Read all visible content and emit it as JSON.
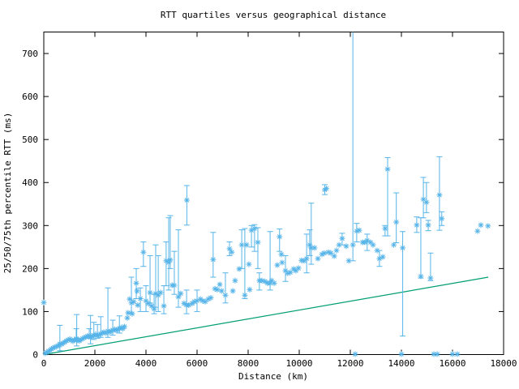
{
  "chart_data": {
    "type": "scatter",
    "subtype": "points-with-yerrorbars",
    "title": "RTT quartiles versus geographical distance",
    "xlabel": "Distance (km)",
    "ylabel": "25/50/75th percentile RTT (ms)",
    "xlim": [
      0,
      18000
    ],
    "ylim": [
      0,
      750
    ],
    "xticks": [
      0,
      2000,
      4000,
      6000,
      8000,
      10000,
      12000,
      14000,
      16000,
      18000
    ],
    "yticks": [
      0,
      100,
      200,
      300,
      400,
      500,
      600,
      700
    ],
    "grid": false,
    "legend": "none",
    "marker": "asterisk",
    "colors": {
      "points": "#56b4e9",
      "refline": "#009e73",
      "axis": "#000000",
      "background": "#ffffff"
    },
    "refline": {
      "meaning": "distance-proportional lower bound",
      "x": [
        0,
        17400
      ],
      "y": [
        0,
        180
      ]
    },
    "points_format": "[distance_km, median_ms, q1_ms?, q3_ms?]",
    "points": [
      [
        0,
        121
      ],
      [
        60,
        3
      ],
      [
        120,
        5
      ],
      [
        190,
        8
      ],
      [
        250,
        10
      ],
      [
        300,
        13
      ],
      [
        360,
        15
      ],
      [
        420,
        17
      ],
      [
        480,
        18
      ],
      [
        540,
        20
      ],
      [
        600,
        22
      ],
      [
        630,
        25,
        9,
        68
      ],
      [
        700,
        24
      ],
      [
        760,
        27
      ],
      [
        820,
        29
      ],
      [
        890,
        32
      ],
      [
        950,
        34
      ],
      [
        1020,
        36
      ],
      [
        1080,
        33
      ],
      [
        1140,
        31
      ],
      [
        1200,
        34
      ],
      [
        1270,
        37,
        30,
        60
      ],
      [
        1290,
        35,
        20,
        93
      ],
      [
        1340,
        33
      ],
      [
        1400,
        32
      ],
      [
        1460,
        35
      ],
      [
        1520,
        37
      ],
      [
        1580,
        39
      ],
      [
        1650,
        41
      ],
      [
        1710,
        43
      ],
      [
        1780,
        44,
        38,
        60
      ],
      [
        1830,
        40,
        25,
        91
      ],
      [
        1900,
        42
      ],
      [
        1960,
        45,
        35,
        75
      ],
      [
        2030,
        47
      ],
      [
        2100,
        44,
        38,
        70
      ],
      [
        2160,
        46
      ],
      [
        2230,
        48,
        40,
        88
      ],
      [
        2290,
        50
      ],
      [
        2350,
        52
      ],
      [
        2420,
        50
      ],
      [
        2510,
        55,
        40,
        155
      ],
      [
        2570,
        52
      ],
      [
        2640,
        54
      ],
      [
        2700,
        57,
        45,
        80
      ],
      [
        2770,
        59
      ],
      [
        2830,
        56
      ],
      [
        2900,
        58
      ],
      [
        2960,
        61,
        50,
        90
      ],
      [
        3030,
        63
      ],
      [
        3090,
        60
      ],
      [
        3160,
        65
      ],
      [
        3270,
        85
      ],
      [
        3300,
        97
      ],
      [
        3360,
        129
      ],
      [
        3430,
        120,
        95,
        180
      ],
      [
        3460,
        95
      ],
      [
        3520,
        123
      ],
      [
        3620,
        166,
        130,
        200
      ],
      [
        3650,
        148
      ],
      [
        3680,
        115
      ],
      [
        3780,
        130,
        100,
        155
      ],
      [
        3900,
        238,
        205,
        262
      ],
      [
        4000,
        125,
        100,
        160
      ],
      [
        4090,
        119
      ],
      [
        4160,
        144,
        120,
        230
      ],
      [
        4220,
        113
      ],
      [
        4320,
        106,
        95,
        140
      ],
      [
        4380,
        142,
        110,
        255
      ],
      [
        4480,
        138,
        100,
        230
      ],
      [
        4570,
        144
      ],
      [
        4700,
        113,
        95,
        160
      ],
      [
        4790,
        218,
        160,
        262
      ],
      [
        4890,
        214,
        150,
        318
      ],
      [
        4950,
        220,
        200,
        323
      ],
      [
        5020,
        161
      ],
      [
        5110,
        161,
        140,
        240
      ],
      [
        5270,
        134,
        110,
        290
      ],
      [
        5360,
        142
      ],
      [
        5490,
        119
      ],
      [
        5590,
        115,
        95,
        150
      ],
      [
        5600,
        359,
        301,
        393
      ],
      [
        5680,
        115
      ],
      [
        5810,
        119
      ],
      [
        5900,
        123
      ],
      [
        6000,
        125,
        100,
        150
      ],
      [
        6130,
        129
      ],
      [
        6220,
        125
      ],
      [
        6320,
        123
      ],
      [
        6440,
        129
      ],
      [
        6540,
        132
      ],
      [
        6630,
        221,
        180,
        284
      ],
      [
        6700,
        153
      ],
      [
        6790,
        151
      ],
      [
        6890,
        163
      ],
      [
        6960,
        148
      ],
      [
        7110,
        138,
        120,
        190
      ],
      [
        7270,
        246,
        230,
        262
      ],
      [
        7360,
        238
      ],
      [
        7400,
        148
      ],
      [
        7490,
        172
      ],
      [
        7650,
        199
      ],
      [
        7750,
        255,
        200,
        290
      ],
      [
        7870,
        138,
        130,
        293
      ],
      [
        7940,
        255
      ],
      [
        8030,
        210
      ],
      [
        8060,
        151
      ],
      [
        8130,
        289,
        250,
        300
      ],
      [
        8250,
        293,
        240,
        302
      ],
      [
        8380,
        261,
        200,
        295
      ],
      [
        8440,
        172,
        150,
        190
      ],
      [
        8540,
        172
      ],
      [
        8660,
        170
      ],
      [
        8760,
        166
      ],
      [
        8860,
        166,
        150,
        286
      ],
      [
        8920,
        172
      ],
      [
        9020,
        166
      ],
      [
        9140,
        208
      ],
      [
        9230,
        274,
        240,
        292
      ],
      [
        9300,
        233
      ],
      [
        9330,
        214
      ],
      [
        9460,
        195,
        170,
        230
      ],
      [
        9550,
        189
      ],
      [
        9650,
        191
      ],
      [
        9780,
        199
      ],
      [
        9870,
        195
      ],
      [
        9970,
        201
      ],
      [
        10090,
        219
      ],
      [
        10190,
        218
      ],
      [
        10290,
        223,
        190,
        280
      ],
      [
        10410,
        255,
        230,
        290
      ],
      [
        10470,
        248,
        210,
        352
      ],
      [
        10600,
        248
      ],
      [
        10730,
        223
      ],
      [
        10890,
        233
      ],
      [
        10980,
        236
      ],
      [
        11000,
        383,
        372,
        395
      ],
      [
        11060,
        386
      ],
      [
        11140,
        238
      ],
      [
        11240,
        236
      ],
      [
        11370,
        229
      ],
      [
        11460,
        242
      ],
      [
        11560,
        255
      ],
      [
        11680,
        270,
        255,
        282
      ],
      [
        11840,
        252
      ],
      [
        11940,
        218
      ],
      [
        12100,
        255,
        218,
        760
      ],
      [
        12190,
        1
      ],
      [
        12250,
        287,
        262,
        305
      ],
      [
        12350,
        289
      ],
      [
        12480,
        261
      ],
      [
        12570,
        261
      ],
      [
        12660,
        265,
        242,
        280
      ],
      [
        12790,
        261
      ],
      [
        12890,
        255
      ],
      [
        13050,
        242
      ],
      [
        13140,
        223,
        205,
        242
      ],
      [
        13270,
        227
      ],
      [
        13360,
        293,
        276,
        300
      ],
      [
        13460,
        431,
        276,
        458
      ],
      [
        13700,
        255
      ],
      [
        13800,
        308,
        260,
        376
      ],
      [
        14000,
        1
      ],
      [
        14050,
        248,
        43,
        286
      ],
      [
        14600,
        301,
        284,
        320
      ],
      [
        14760,
        182,
        178,
        318
      ],
      [
        14860,
        361,
        318,
        412
      ],
      [
        14980,
        354,
        330,
        400
      ],
      [
        15050,
        301,
        288,
        312
      ],
      [
        15140,
        178,
        172,
        236
      ],
      [
        15270,
        1
      ],
      [
        15400,
        1
      ],
      [
        15490,
        371,
        289,
        460
      ],
      [
        15580,
        316,
        300,
        332
      ],
      [
        16000,
        1
      ],
      [
        16190,
        1
      ],
      [
        16980,
        287
      ],
      [
        17110,
        301
      ],
      [
        17390,
        299
      ]
    ]
  }
}
